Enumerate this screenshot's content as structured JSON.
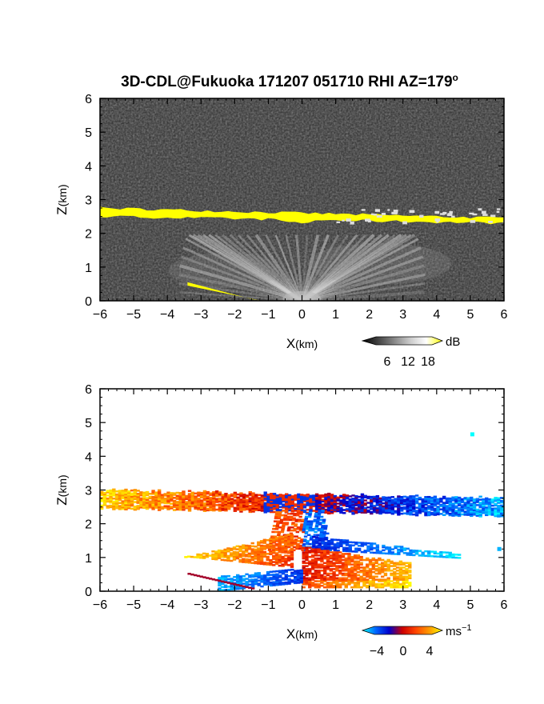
{
  "figure": {
    "title_main": "3D-CDL@Fukuoka 171207 051710 RHI AZ=179",
    "title_sup": "o"
  },
  "chart_data": [
    {
      "type": "heatmap",
      "name": "reflectivity panel",
      "xlabel_main": "X",
      "xlabel_unit": "(km)",
      "ylabel_main": "Z",
      "ylabel_unit": "(km)",
      "xlim": [
        -6,
        6
      ],
      "ylim": [
        0,
        6
      ],
      "x_ticks": [
        "-6",
        "-5",
        "-4",
        "-3",
        "-2",
        "-1",
        "0",
        "1",
        "2",
        "3",
        "4",
        "5",
        "6"
      ],
      "y_ticks": [
        "0",
        "1",
        "2",
        "3",
        "4",
        "5",
        "6"
      ],
      "background_color": "#2b2b2b",
      "colorbar": {
        "unit": "dB",
        "ticks": [
          "6",
          "12",
          "18"
        ],
        "colors": [
          "#000000",
          "#444444",
          "#888888",
          "#cccccc",
          "#ffffff",
          "#ffff00"
        ]
      },
      "features": [
        {
          "kind": "layer",
          "x_range": [
            -6,
            6
          ],
          "z_top": [
            2.75,
            2.45
          ],
          "z_bottom": [
            2.5,
            2.3
          ],
          "value_db": 20
        },
        {
          "kind": "fan",
          "origin_x": 0,
          "max_range_km": 4.6,
          "max_height_km": 1.9,
          "value_db": 12
        },
        {
          "kind": "ground_clutter",
          "x_range": [
            -3.4,
            -1.5
          ],
          "z_range": [
            0.5,
            0.0
          ],
          "value_db": 20
        }
      ]
    },
    {
      "type": "heatmap",
      "name": "velocity panel",
      "xlabel_main": "X",
      "xlabel_unit": "(km)",
      "ylabel_main": "Z",
      "ylabel_unit": "(km)",
      "xlim": [
        -6,
        6
      ],
      "ylim": [
        0,
        6
      ],
      "x_ticks": [
        "-6",
        "-5",
        "-4",
        "-3",
        "-2",
        "-1",
        "0",
        "1",
        "2",
        "3",
        "4",
        "5",
        "6"
      ],
      "y_ticks": [
        "0",
        "1",
        "2",
        "3",
        "4",
        "5",
        "6"
      ],
      "background_color": "#ffffff",
      "colorbar": {
        "unit_main": "ms",
        "unit_sup": "−1",
        "ticks": [
          "−4",
          "0",
          "4"
        ],
        "colors": [
          "#00ffff",
          "#0066ff",
          "#0000cc",
          "#cc0000",
          "#ff4400",
          "#ff9900",
          "#ffff00"
        ]
      },
      "features": [
        {
          "kind": "layer",
          "x_range": [
            -6,
            6
          ],
          "z_range": [
            2.3,
            2.8
          ],
          "velocity_west": 4,
          "velocity_east": -4
        },
        {
          "kind": "fan_upper_left",
          "x_range": [
            -3.5,
            -0.5
          ],
          "z_range": [
            0.5,
            1.8
          ],
          "velocity": 3
        },
        {
          "kind": "fan_upper_right",
          "x_range": [
            0.3,
            4.7
          ],
          "z_range": [
            0.9,
            1.6
          ],
          "velocity": -3
        },
        {
          "kind": "fan_lower_left",
          "x_range": [
            -2.5,
            0
          ],
          "z_range": [
            0.0,
            0.7
          ],
          "velocity": -3
        },
        {
          "kind": "fan_lower_right",
          "x_range": [
            0,
            3.2
          ],
          "z_range": [
            0.0,
            1.0
          ],
          "velocity": 3
        },
        {
          "kind": "speck",
          "x": 5.0,
          "z": 4.65,
          "velocity": -5
        },
        {
          "kind": "speck",
          "x": 5.8,
          "z": 1.25,
          "velocity": -4
        }
      ]
    }
  ]
}
